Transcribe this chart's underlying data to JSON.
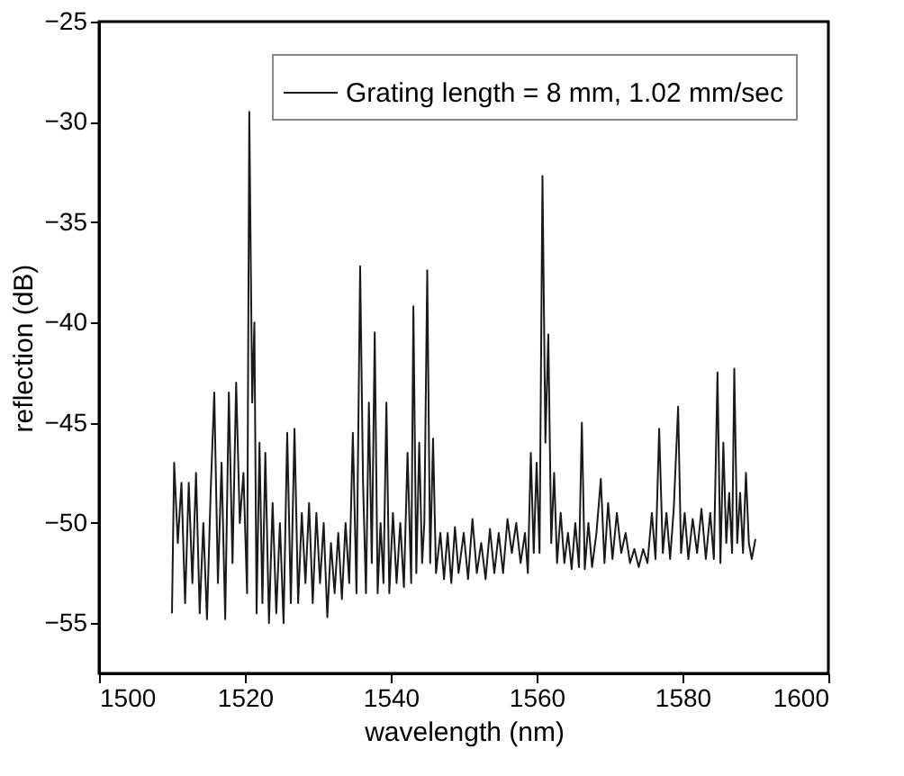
{
  "chart_data": {
    "type": "line",
    "xlabel": "wavelength (nm)",
    "ylabel": "reflection (dB)",
    "xlim": [
      1500,
      1600
    ],
    "xticks": [
      1500,
      1520,
      1540,
      1560,
      1580,
      1600
    ],
    "ylim": [
      -57.5,
      -25
    ],
    "yticks": [
      -55,
      -50,
      -45,
      -40,
      -35,
      -30,
      -25
    ],
    "grid": false,
    "legend": "top right",
    "marker": "none",
    "line_style": "solid",
    "series": [
      {
        "name": "Grating length = 8 mm, 1.02 mm/sec",
        "color": "#1a1a1a",
        "x": [
          1510,
          1510.3,
          1510.8,
          1511.3,
          1511.8,
          1512.3,
          1512.8,
          1513.3,
          1513.8,
          1514.3,
          1514.8,
          1515.3,
          1515.8,
          1516.3,
          1516.8,
          1517.3,
          1517.8,
          1518.3,
          1518.8,
          1519.3,
          1519.8,
          1520.3,
          1520.6,
          1521.0,
          1521.3,
          1521.6,
          1522.0,
          1522.4,
          1522.8,
          1523.3,
          1523.8,
          1524.3,
          1524.8,
          1525.3,
          1525.8,
          1526.3,
          1526.8,
          1527.3,
          1527.8,
          1528.3,
          1528.8,
          1529.3,
          1529.8,
          1530.3,
          1530.8,
          1531.3,
          1531.8,
          1532.3,
          1532.8,
          1533.3,
          1533.8,
          1534.3,
          1534.8,
          1535.3,
          1535.8,
          1536.2,
          1536.6,
          1537.0,
          1537.4,
          1537.8,
          1538.2,
          1538.6,
          1539.0,
          1539.4,
          1539.8,
          1540.3,
          1540.8,
          1541.3,
          1541.8,
          1542.3,
          1542.8,
          1543.1,
          1543.5,
          1543.9,
          1544.3,
          1544.6,
          1545.0,
          1545.4,
          1545.8,
          1546.2,
          1546.8,
          1547.3,
          1547.8,
          1548.3,
          1548.8,
          1549.3,
          1550.0,
          1550.6,
          1551.2,
          1551.8,
          1552.4,
          1553.0,
          1553.6,
          1554.2,
          1554.8,
          1555.4,
          1556.0,
          1556.6,
          1557.2,
          1557.8,
          1558.4,
          1558.8,
          1559.2,
          1559.6,
          1560.0,
          1560.4,
          1560.8,
          1561.2,
          1561.6,
          1562.0,
          1562.4,
          1562.8,
          1563.3,
          1563.8,
          1564.3,
          1564.8,
          1565.3,
          1565.8,
          1566.2,
          1566.6,
          1567.1,
          1567.6,
          1568.2,
          1568.8,
          1569.3,
          1569.8,
          1570.4,
          1571.0,
          1571.6,
          1572.2,
          1572.8,
          1573.4,
          1574.0,
          1574.6,
          1575.2,
          1575.8,
          1576.3,
          1576.8,
          1577.3,
          1577.8,
          1578.3,
          1578.8,
          1579.4,
          1579.8,
          1580.3,
          1580.8,
          1581.4,
          1582.0,
          1582.6,
          1583.2,
          1583.8,
          1584.3,
          1584.8,
          1585.2,
          1585.6,
          1586.0,
          1586.4,
          1586.8,
          1587.1,
          1587.5,
          1587.9,
          1588.3,
          1588.7,
          1589.1,
          1589.5,
          1590
        ],
        "values": [
          -54.5,
          -47,
          -51,
          -48,
          -54,
          -48,
          -53,
          -47.5,
          -54.5,
          -50,
          -54.8,
          -48.5,
          -43.5,
          -53,
          -47,
          -54.8,
          -43.5,
          -52,
          -43,
          -50,
          -47.5,
          -53.5,
          -29.5,
          -44,
          -40,
          -54.5,
          -46,
          -54,
          -46.5,
          -55,
          -49,
          -54.5,
          -50,
          -55,
          -45.5,
          -54,
          -45.3,
          -54,
          -49.5,
          -53,
          -49,
          -54,
          -49.5,
          -53,
          -50,
          -54.7,
          -51,
          -53.5,
          -50.5,
          -53.8,
          -50,
          -53,
          -45.5,
          -53.5,
          -37.2,
          -48,
          -53.5,
          -44,
          -52,
          -40.5,
          -53.5,
          -50,
          -53,
          -44,
          -53.5,
          -49.5,
          -53,
          -50,
          -53.2,
          -46.5,
          -53,
          -39.2,
          -52.5,
          -46,
          -52,
          -50,
          -37.4,
          -52,
          -45.8,
          -52.5,
          -50.5,
          -52.8,
          -50.5,
          -53,
          -50.2,
          -52.5,
          -50.5,
          -52.8,
          -49.8,
          -52.5,
          -51,
          -52.8,
          -50.3,
          -52.5,
          -50.5,
          -52.5,
          -49.8,
          -51.5,
          -50,
          -52,
          -50.5,
          -52.5,
          -46.5,
          -51.5,
          -47,
          -51.5,
          -32.7,
          -46,
          -40.6,
          -51,
          -47.5,
          -52,
          -49.5,
          -52,
          -50.5,
          -52.3,
          -50,
          -52.2,
          -45,
          -52.3,
          -50,
          -52.2,
          -50.5,
          -47.8,
          -52,
          -49,
          -51.8,
          -49.5,
          -51.5,
          -50.5,
          -52,
          -51.3,
          -52.2,
          -51.3,
          -52,
          -49.5,
          -51.8,
          -45.3,
          -51.5,
          -49.5,
          -51.8,
          -49.3,
          -44.2,
          -51.5,
          -49.5,
          -51.8,
          -49.8,
          -51.5,
          -49.3,
          -51.8,
          -49.5,
          -51.8,
          -42.5,
          -52,
          -46,
          -51,
          -48.5,
          -51.5,
          -42.3,
          -51,
          -48.5,
          -51.5,
          -47.5,
          -51,
          -51.8,
          -50.8
        ]
      }
    ]
  }
}
